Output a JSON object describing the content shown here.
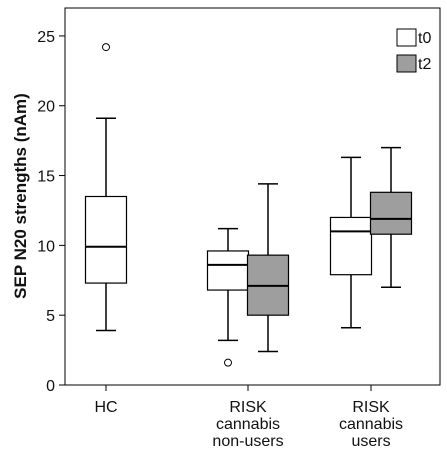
{
  "chart_data": {
    "type": "boxplot",
    "title": "",
    "xlabel": "",
    "ylabel": "SEP N20 strengths (nAm)",
    "ylim": [
      0,
      27
    ],
    "yticks": [
      0,
      5,
      10,
      15,
      20,
      25
    ],
    "grid": false,
    "legend_position": "top-right",
    "categories": [
      {
        "lines": [
          "HC"
        ]
      },
      {
        "lines": [
          "RISK",
          "cannabis",
          "non-users"
        ]
      },
      {
        "lines": [
          "RISK",
          "cannabis",
          "users"
        ]
      }
    ],
    "series": [
      {
        "name": "t0",
        "color": "#ffffff"
      },
      {
        "name": "t2",
        "color": "#9e9e9e"
      }
    ],
    "boxes": [
      {
        "category": 0,
        "series": 0,
        "whisker_low": 3.9,
        "q1": 7.3,
        "median": 9.9,
        "q3": 13.5,
        "whisker_high": 19.1,
        "outliers": [
          24.2
        ]
      },
      {
        "category": 1,
        "series": 0,
        "whisker_low": 3.2,
        "q1": 6.8,
        "median": 8.6,
        "q3": 9.6,
        "whisker_high": 11.2,
        "outliers": [
          1.6
        ]
      },
      {
        "category": 1,
        "series": 1,
        "whisker_low": 2.4,
        "q1": 5.0,
        "median": 7.1,
        "q3": 9.3,
        "whisker_high": 14.4,
        "outliers": []
      },
      {
        "category": 2,
        "series": 0,
        "whisker_low": 4.1,
        "q1": 7.9,
        "median": 11.0,
        "q3": 12.0,
        "whisker_high": 16.3,
        "outliers": []
      },
      {
        "category": 2,
        "series": 1,
        "whisker_low": 7.0,
        "q1": 10.8,
        "median": 11.9,
        "q3": 13.8,
        "whisker_high": 17.0,
        "outliers": []
      }
    ]
  }
}
